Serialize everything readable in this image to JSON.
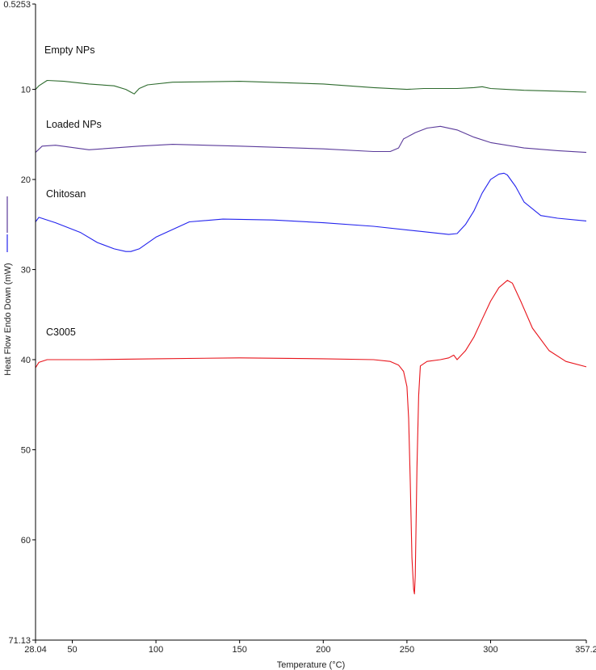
{
  "chart_data": {
    "type": "line",
    "xlabel": "Temperature (°C)",
    "ylabel": "Heat Flow Endo Down (mW)",
    "xlim": [
      28.04,
      357.2
    ],
    "ylim": [
      0.5253,
      71.13
    ],
    "y_inverted": true,
    "x_ticks": [
      "28.04",
      "50",
      "100",
      "150",
      "200",
      "250",
      "300",
      "357.2"
    ],
    "x_tick_values": [
      28.04,
      50,
      100,
      150,
      200,
      250,
      300,
      357.2
    ],
    "y_ticks": [
      "0.5253",
      "10",
      "20",
      "30",
      "40",
      "50",
      "60",
      "71.13"
    ],
    "y_tick_values": [
      0.5253,
      10,
      20,
      30,
      40,
      50,
      60,
      71.13
    ],
    "grid": false,
    "series": [
      {
        "name": "Empty NPs",
        "color": "#2e6b2e",
        "x": [
          28.04,
          30,
          35,
          45,
          60,
          75,
          82,
          85,
          87,
          88,
          90,
          95,
          110,
          150,
          200,
          230,
          250,
          260,
          270,
          280,
          290,
          295,
          300,
          320,
          340,
          357.2
        ],
        "y": [
          10.0,
          9.6,
          9.0,
          9.1,
          9.4,
          9.6,
          10.0,
          10.3,
          10.5,
          10.3,
          9.9,
          9.5,
          9.2,
          9.1,
          9.4,
          9.8,
          10.0,
          9.9,
          9.9,
          9.9,
          9.8,
          9.7,
          9.9,
          10.1,
          10.2,
          10.3
        ]
      },
      {
        "name": "Loaded NPs",
        "color": "#5a3a9a",
        "x": [
          28.04,
          32,
          40,
          60,
          90,
          110,
          150,
          200,
          230,
          240,
          245,
          248,
          250,
          255,
          262,
          270,
          280,
          290,
          300,
          320,
          340,
          357.2
        ],
        "y": [
          17.0,
          16.3,
          16.2,
          16.7,
          16.3,
          16.1,
          16.3,
          16.6,
          16.9,
          16.9,
          16.5,
          15.5,
          15.3,
          14.8,
          14.3,
          14.1,
          14.5,
          15.3,
          15.9,
          16.5,
          16.8,
          17.0
        ]
      },
      {
        "name": "Chitosan",
        "color": "#2323ee",
        "x": [
          28.04,
          30,
          40,
          55,
          65,
          75,
          82,
          85,
          90,
          100,
          120,
          140,
          170,
          200,
          230,
          260,
          275,
          280,
          285,
          290,
          295,
          300,
          305,
          308,
          310,
          315,
          320,
          330,
          340,
          357.2
        ],
        "y": [
          24.7,
          24.2,
          24.8,
          25.9,
          27.0,
          27.7,
          28.0,
          28.0,
          27.7,
          26.4,
          24.7,
          24.4,
          24.5,
          24.8,
          25.2,
          25.8,
          26.1,
          26.0,
          25.0,
          23.5,
          21.5,
          20.0,
          19.4,
          19.3,
          19.5,
          20.8,
          22.5,
          24.0,
          24.3,
          24.6
        ]
      },
      {
        "name": "C3005",
        "color": "#e8141b",
        "x": [
          28.04,
          30,
          35,
          60,
          100,
          150,
          200,
          230,
          240,
          245,
          248,
          250,
          251,
          252,
          253,
          254,
          254.5,
          255,
          256,
          257,
          258,
          262,
          270,
          275,
          278,
          280,
          285,
          290,
          295,
          300,
          305,
          310,
          313,
          318,
          325,
          335,
          345,
          357.2
        ],
        "y": [
          40.9,
          40.3,
          40.0,
          40.0,
          39.9,
          39.8,
          39.9,
          40.0,
          40.2,
          40.6,
          41.3,
          43.0,
          46.5,
          53.5,
          62.0,
          65.5,
          66.0,
          64.0,
          52.0,
          44.0,
          40.7,
          40.2,
          40.0,
          39.8,
          39.5,
          40.0,
          39.0,
          37.5,
          35.5,
          33.5,
          32.0,
          31.2,
          31.5,
          33.5,
          36.5,
          39.0,
          40.2,
          40.8
        ]
      }
    ]
  }
}
